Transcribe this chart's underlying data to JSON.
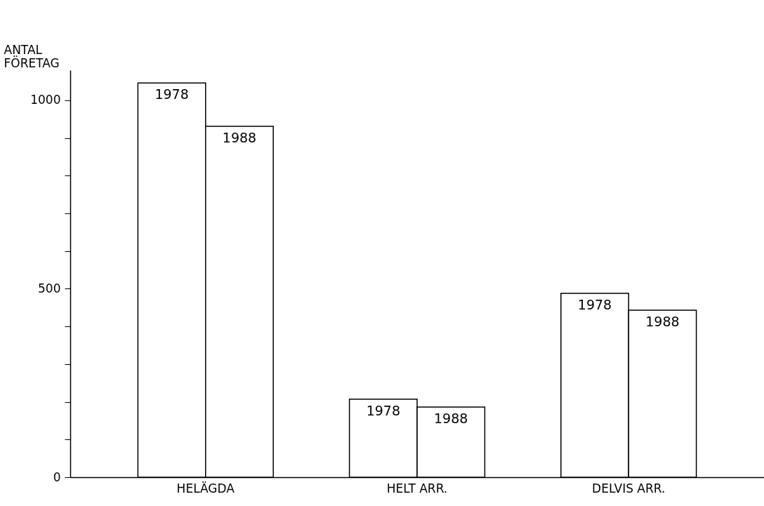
{
  "chart_data": {
    "type": "bar",
    "ylabel": "ANTAL FÖRETAG",
    "categories": [
      "HELÄGDA",
      "HELT ARR.",
      "DELVIS ARR."
    ],
    "series": [
      {
        "name": "1978",
        "color": "#ffffff",
        "values": [
          1046,
          207,
          488
        ]
      },
      {
        "name": "1988",
        "color": "#ffffff",
        "values": [
          931,
          186,
          443
        ]
      }
    ],
    "ylim": [
      0,
      1080
    ],
    "yticks": [
      0,
      {
        "value": 100,
        "label": null
      },
      {
        "value": 200,
        "label": null
      },
      {
        "value": 300,
        "label": null
      },
      {
        "value": 400,
        "label": null
      },
      500,
      {
        "value": 600,
        "label": null
      },
      {
        "value": 700,
        "label": null
      },
      {
        "value": 800,
        "label": null
      },
      {
        "value": 900,
        "label": null
      },
      1000
    ],
    "grid": false,
    "legend": false
  }
}
